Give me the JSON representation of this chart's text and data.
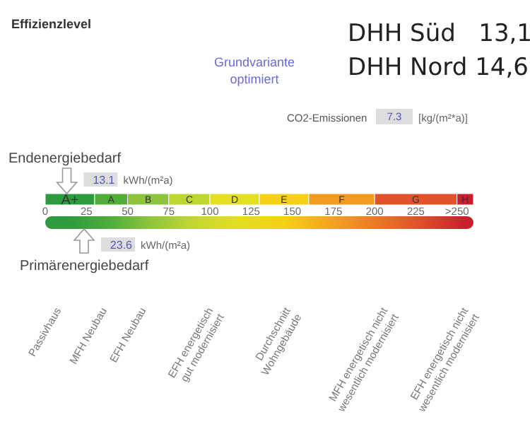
{
  "chart_data": {
    "type": "bar",
    "orientation": "horizontal",
    "stacked": true,
    "title": "Effizienzlevel",
    "subtitle": "Grundvariante optimiert",
    "categories": [
      null
    ],
    "xlim": [
      0,
      260
    ],
    "xticks": [
      0,
      25,
      50,
      75,
      100,
      125,
      150,
      175,
      200,
      225,
      {
        "value": 250,
        "label": ">250"
      }
    ],
    "series": [
      {
        "name": "A+",
        "color": "#2e9b3f",
        "values": [
          30
        ]
      },
      {
        "name": "A",
        "color": "#50ad3a",
        "values": [
          20
        ]
      },
      {
        "name": "B",
        "color": "#8cc43e",
        "values": [
          25
        ]
      },
      {
        "name": "C",
        "color": "#bfd630",
        "values": [
          25
        ]
      },
      {
        "name": "D",
        "color": "#e3df22",
        "values": [
          30
        ]
      },
      {
        "name": "E",
        "color": "#f5d016",
        "values": [
          30
        ]
      },
      {
        "name": "F",
        "color": "#f39a20",
        "values": [
          40
        ]
      },
      {
        "name": "G",
        "color": "#e2532b",
        "values": [
          50
        ]
      },
      {
        "name": "H",
        "color": "#c91f2d",
        "values": [
          10
        ]
      }
    ],
    "ref_lines": [
      {
        "axis": "x",
        "value": 13.1,
        "label": "Endenergiebedarf"
      },
      {
        "axis": "x",
        "value": 23.6,
        "label": "Primärenergiebedarf"
      }
    ],
    "annotations": [
      "DHH Süd   13,1",
      "DHH Nord 14,6",
      "CO2-Emissionen",
      "7.3",
      "[kg/(m²*a)]",
      {
        "text": "13.1",
        "x": 13.1
      },
      {
        "text": "23.6",
        "x": 23.6
      },
      "kWh/(m²a)",
      "kWh/(m²a)",
      "Passivhaus",
      "MFH Neubau",
      "EFH Neubau",
      "EFH energetisch\ngut modernisiert",
      "Durchschnitt\nWohngebäude",
      "MFH energetisch nicht\nwesentlich modernisiert",
      "EFH energetisch nicht\nwesentlich modernisiert"
    ]
  }
}
